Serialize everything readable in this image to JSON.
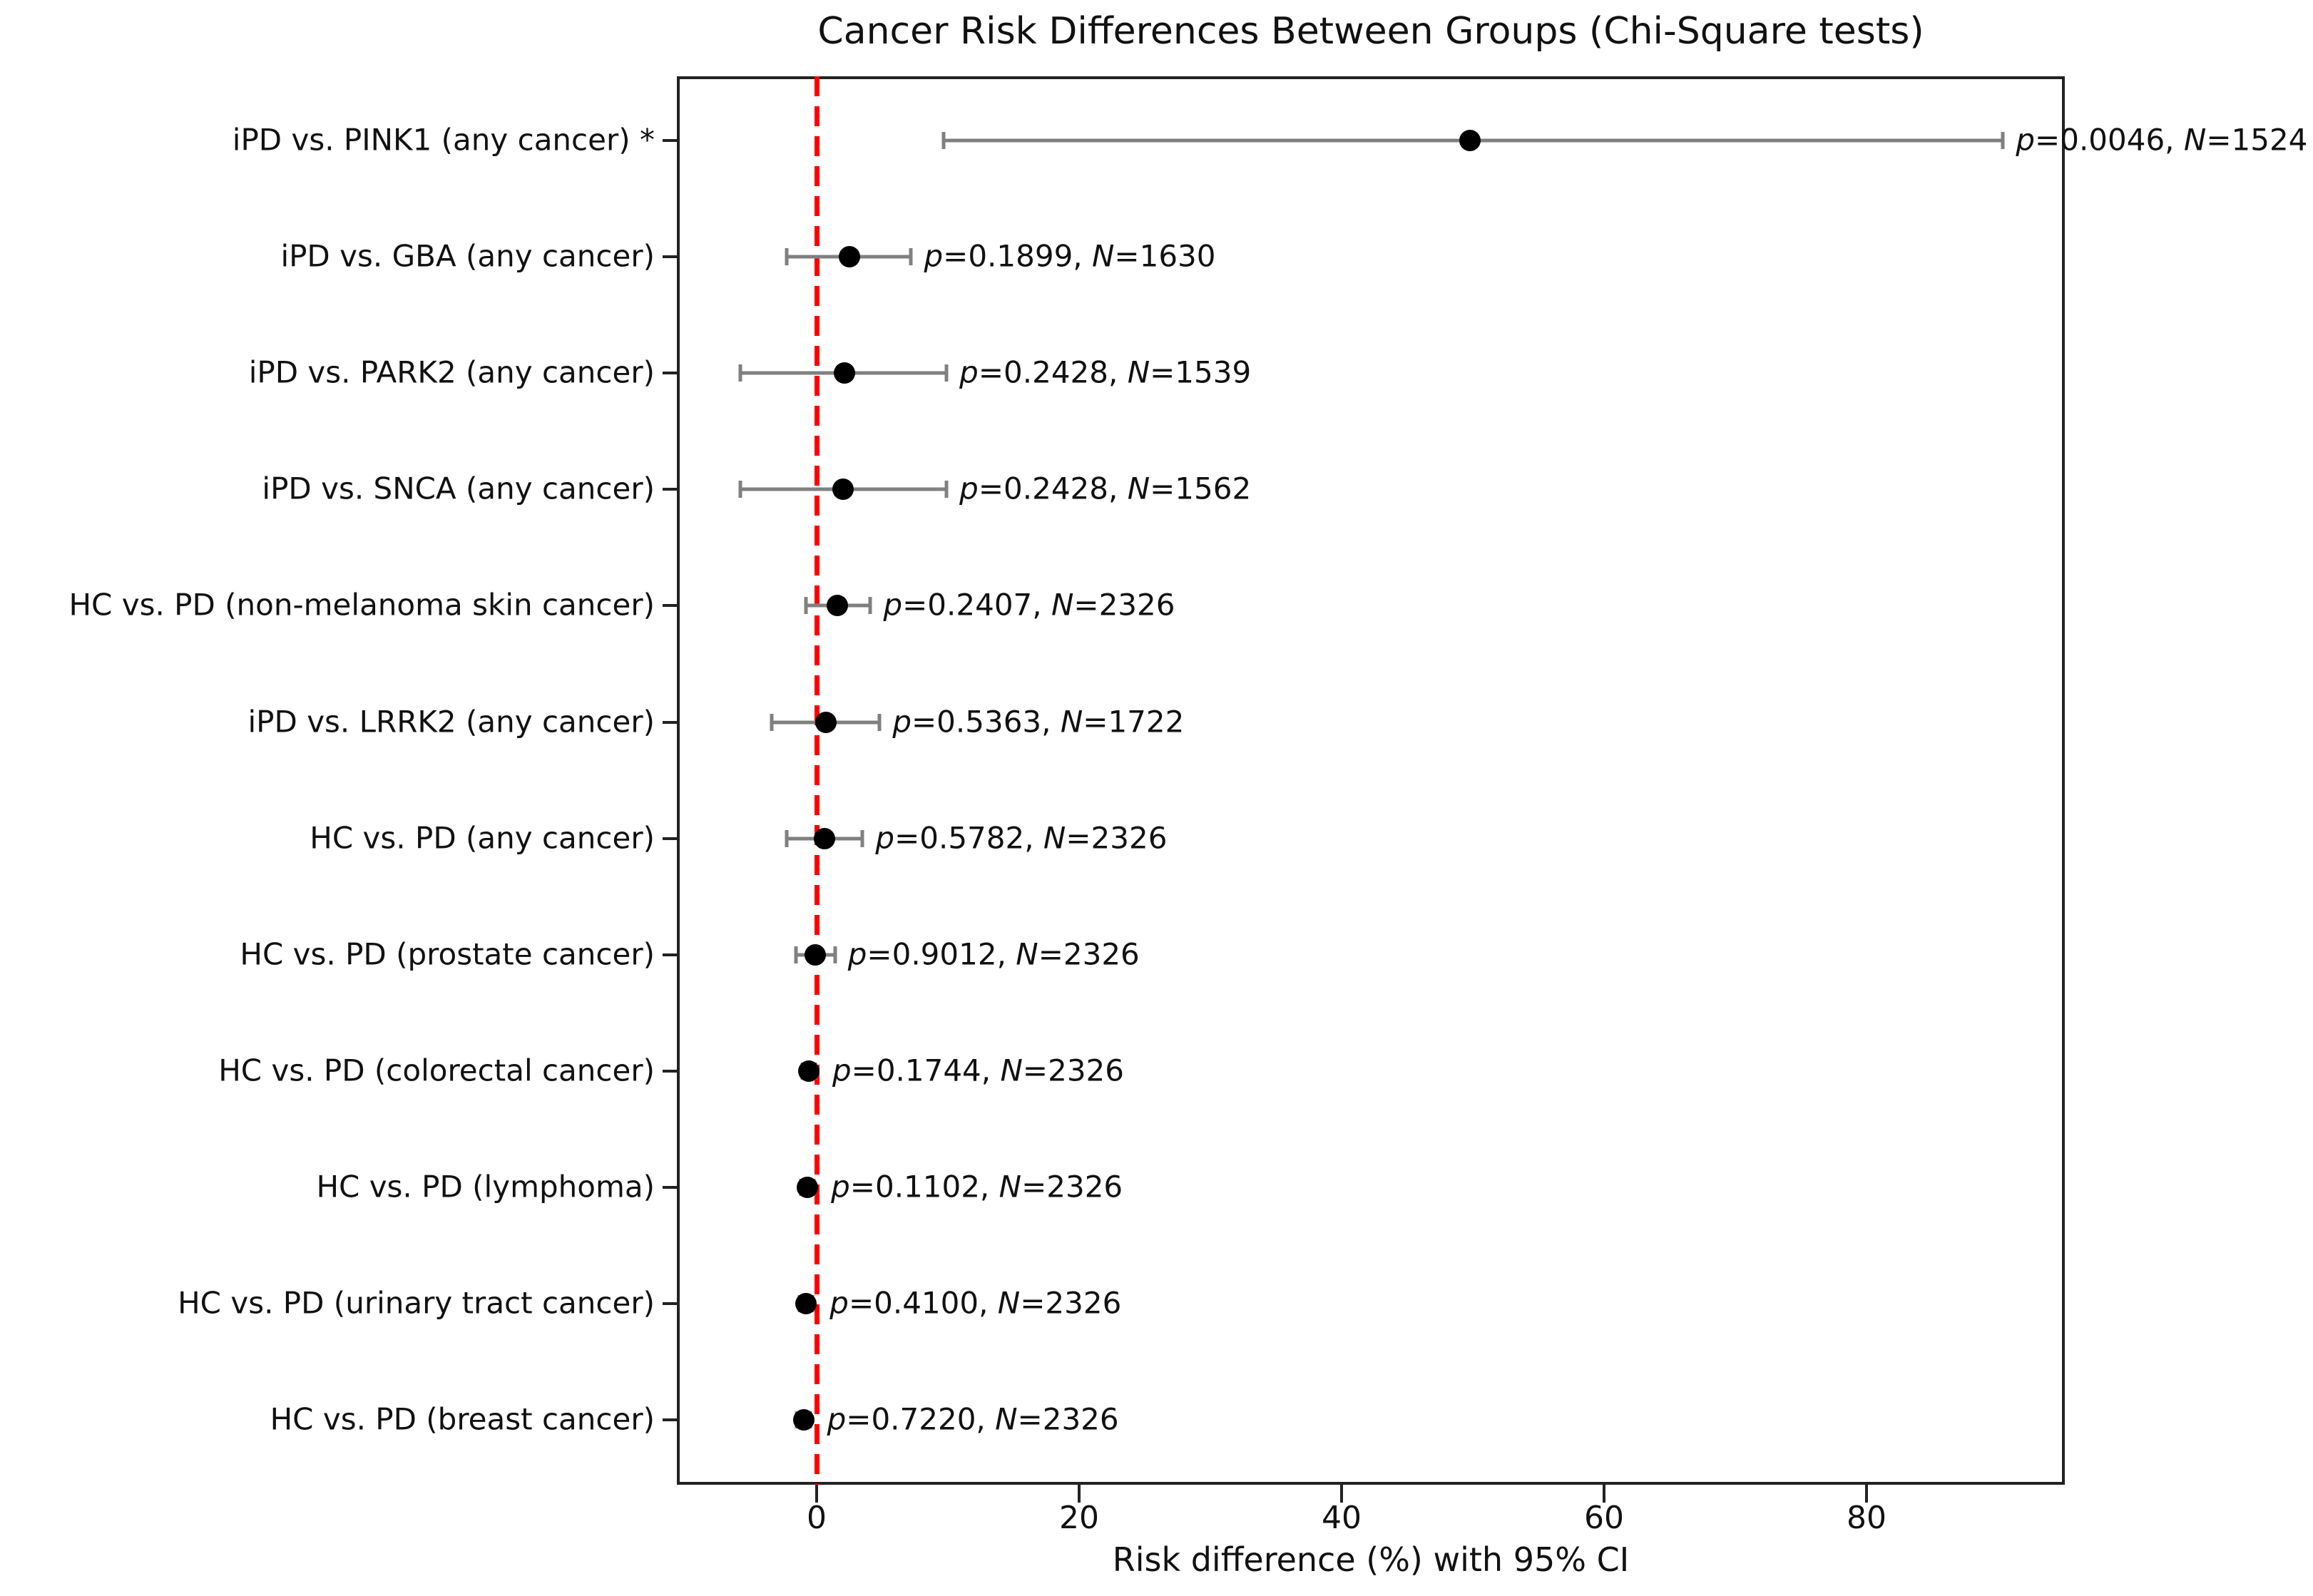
{
  "title": "Cancer Risk Differences Between Groups (Chi-Square tests)",
  "chart_data": {
    "type": "scatter",
    "subtype": "forest-plot-horizontal-errorbars",
    "title": "Cancer Risk Differences Between Groups (Chi-Square tests)",
    "xlabel": "Risk difference (%) with 95% CI",
    "ylabel": "",
    "xlim": [
      -10.4,
      95.1
    ],
    "xticks": [
      0,
      20,
      40,
      60,
      80
    ],
    "grid": false,
    "legend": "none",
    "reference_line_x": 0,
    "rows": [
      {
        "label": "iPD vs. PINK1 (any cancer) *",
        "value": 49.8,
        "ci_low": 9.7,
        "ci_high": 90.4,
        "p": "0.0046",
        "n": "1524",
        "annotation": "p=0.0046, N=1524",
        "significant": true
      },
      {
        "label": "iPD vs. GBA (any cancer)",
        "value": 2.5,
        "ci_low": -2.3,
        "ci_high": 7.2,
        "p": "0.1899",
        "n": "1630",
        "annotation": "p=0.1899, N=1630",
        "significant": false
      },
      {
        "label": "iPD vs. PARK2 (any cancer)",
        "value": 2.1,
        "ci_low": -5.8,
        "ci_high": 9.9,
        "p": "0.2428",
        "n": "1539",
        "annotation": "p=0.2428, N=1539",
        "significant": false
      },
      {
        "label": "iPD vs. SNCA (any cancer)",
        "value": 2.0,
        "ci_low": -5.8,
        "ci_high": 9.9,
        "p": "0.2428",
        "n": "1562",
        "annotation": "p=0.2428, N=1562",
        "significant": false
      },
      {
        "label": "HC vs. PD (non-melanoma skin cancer)",
        "value": 1.6,
        "ci_low": -0.8,
        "ci_high": 4.1,
        "p": "0.2407",
        "n": "2326",
        "annotation": "p=0.2407, N=2326",
        "significant": false
      },
      {
        "label": "iPD vs. LRRK2 (any cancer)",
        "value": 0.7,
        "ci_low": -3.4,
        "ci_high": 4.8,
        "p": "0.5363",
        "n": "1722",
        "annotation": "p=0.5363, N=1722",
        "significant": false
      },
      {
        "label": "HC vs. PD (any cancer)",
        "value": 0.6,
        "ci_low": -2.3,
        "ci_high": 3.5,
        "p": "0.5782",
        "n": "2326",
        "annotation": "p=0.5782, N=2326",
        "significant": false
      },
      {
        "label": "HC vs. PD (prostate cancer)",
        "value": -0.1,
        "ci_low": -1.6,
        "ci_high": 1.4,
        "p": "0.9012",
        "n": "2326",
        "annotation": "p=0.9012, N=2326",
        "significant": false
      },
      {
        "label": "HC vs. PD (colorectal cancer)",
        "value": -0.6,
        "ci_low": -1.1,
        "ci_high": -0.1,
        "p": "0.1744",
        "n": "2326",
        "annotation": "p=0.1744, N=2326",
        "significant": false
      },
      {
        "label": "HC vs. PD (lymphoma)",
        "value": -0.7,
        "ci_low": -1.2,
        "ci_high": -0.2,
        "p": "0.1102",
        "n": "2326",
        "annotation": "p=0.1102, N=2326",
        "significant": false
      },
      {
        "label": "HC vs. PD (urinary tract cancer)",
        "value": -0.8,
        "ci_low": -1.3,
        "ci_high": -0.3,
        "p": "0.4100",
        "n": "2326",
        "annotation": "p=0.4100, N=2326",
        "significant": false
      },
      {
        "label": "HC vs. PD (breast cancer)",
        "value": -1.0,
        "ci_low": -1.5,
        "ci_high": -0.5,
        "p": "0.7220",
        "n": "2326",
        "annotation": "p=0.7220, N=2326",
        "significant": false
      }
    ]
  },
  "colors": {
    "reference_line": "#ff0000",
    "error_bar": "#808080",
    "marker": "#000000",
    "frame": "#222222",
    "text": "#111111"
  }
}
